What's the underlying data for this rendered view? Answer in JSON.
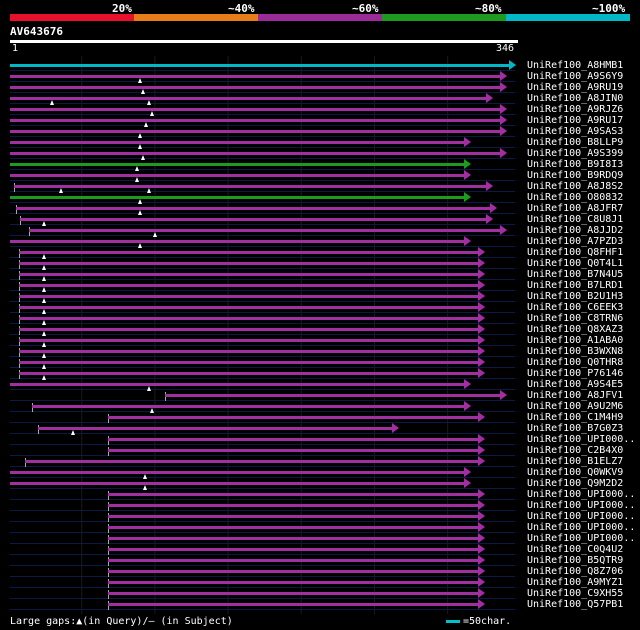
{
  "legend": {
    "labels": [
      "20%",
      "~40%",
      "~60%",
      "~80%",
      "~100%"
    ],
    "colors": [
      "#e8102c",
      "#e87c18",
      "#9a2c9a",
      "#1e9a1e",
      "#00b8c8"
    ]
  },
  "query": {
    "name": "AV643676",
    "start": "1",
    "end": "346"
  },
  "hits": [
    {
      "name": "UniRef100_A8HMB1",
      "color": "#00b8c8",
      "s": 1,
      "e": 346,
      "gaps": []
    },
    {
      "name": "UniRef100_A9S6Y9",
      "color": "#a030a0",
      "s": 1,
      "e": 340,
      "gaps": [
        90
      ]
    },
    {
      "name": "UniRef100_A9RU19",
      "color": "#a030a0",
      "s": 1,
      "e": 340,
      "gaps": [
        92
      ]
    },
    {
      "name": "UniRef100_A8JIN0",
      "color": "#a030a0",
      "s": 1,
      "e": 330,
      "gaps": [
        30,
        96
      ]
    },
    {
      "name": "UniRef100_A9RJZ6",
      "color": "#a030a0",
      "s": 1,
      "e": 340,
      "gaps": [
        98
      ]
    },
    {
      "name": "UniRef100_A9RU17",
      "color": "#a030a0",
      "s": 1,
      "e": 340,
      "gaps": [
        94
      ]
    },
    {
      "name": "UniRef100_A9SAS3",
      "color": "#a030a0",
      "s": 1,
      "e": 340,
      "gaps": [
        90
      ]
    },
    {
      "name": "UniRef100_B8LLP9",
      "color": "#a030a0",
      "s": 1,
      "e": 315,
      "gaps": [
        90
      ]
    },
    {
      "name": "UniRef100_A9S399",
      "color": "#a030a0",
      "s": 1,
      "e": 340,
      "gaps": [
        92
      ]
    },
    {
      "name": "UniRef100_B9I8I3",
      "color": "#1e9a1e",
      "s": 1,
      "e": 315,
      "gaps": [
        88
      ]
    },
    {
      "name": "UniRef100_B9RDQ9",
      "color": "#a030a0",
      "s": 1,
      "e": 315,
      "gaps": [
        88
      ]
    },
    {
      "name": "UniRef100_A8J8S2",
      "color": "#a030a0",
      "s": 4,
      "e": 330,
      "gaps": [
        36,
        96
      ]
    },
    {
      "name": "UniRef100_O80832",
      "color": "#1e9a1e",
      "s": 1,
      "e": 315,
      "gaps": [
        90
      ]
    },
    {
      "name": "UniRef100_A8JFR7",
      "color": "#a030a0",
      "s": 5,
      "e": 333,
      "gaps": [
        90
      ]
    },
    {
      "name": "UniRef100_C8U8J1",
      "color": "#a030a0",
      "s": 8,
      "e": 330,
      "gaps": [
        24
      ]
    },
    {
      "name": "UniRef100_A8JJD2",
      "color": "#a030a0",
      "s": 14,
      "e": 340,
      "gaps": [
        100
      ]
    },
    {
      "name": "UniRef100_A7PZD3",
      "color": "#a030a0",
      "s": 1,
      "e": 315,
      "gaps": [
        90
      ]
    },
    {
      "name": "UniRef100_Q8FHF1",
      "color": "#a030a0",
      "s": 7,
      "e": 325,
      "gaps": [
        24
      ]
    },
    {
      "name": "UniRef100_Q0T4L1",
      "color": "#a030a0",
      "s": 7,
      "e": 325,
      "gaps": [
        24
      ]
    },
    {
      "name": "UniRef100_B7N4U5",
      "color": "#a030a0",
      "s": 7,
      "e": 325,
      "gaps": [
        24
      ]
    },
    {
      "name": "UniRef100_B7LRD1",
      "color": "#a030a0",
      "s": 7,
      "e": 325,
      "gaps": [
        24
      ]
    },
    {
      "name": "UniRef100_B2U1H3",
      "color": "#a030a0",
      "s": 7,
      "e": 325,
      "gaps": [
        24
      ]
    },
    {
      "name": "UniRef100_C6EEK3",
      "color": "#a030a0",
      "s": 7,
      "e": 325,
      "gaps": [
        24
      ]
    },
    {
      "name": "UniRef100_C8TRN6",
      "color": "#a030a0",
      "s": 7,
      "e": 325,
      "gaps": [
        24
      ]
    },
    {
      "name": "UniRef100_Q8XAZ3",
      "color": "#a030a0",
      "s": 7,
      "e": 325,
      "gaps": [
        24
      ]
    },
    {
      "name": "UniRef100_A1ABA0",
      "color": "#a030a0",
      "s": 7,
      "e": 325,
      "gaps": [
        24
      ]
    },
    {
      "name": "UniRef100_B3WXN8",
      "color": "#a030a0",
      "s": 7,
      "e": 325,
      "gaps": [
        24
      ]
    },
    {
      "name": "UniRef100_Q0THR8",
      "color": "#a030a0",
      "s": 7,
      "e": 325,
      "gaps": [
        24
      ]
    },
    {
      "name": "UniRef100_P76146",
      "color": "#a030a0",
      "s": 7,
      "e": 325,
      "gaps": [
        24
      ]
    },
    {
      "name": "UniRef100_A9S4E5",
      "color": "#a030a0",
      "s": 1,
      "e": 315,
      "gaps": [
        96
      ]
    },
    {
      "name": "UniRef100_A8JFV1",
      "color": "#a030a0",
      "s": 107,
      "e": 340,
      "gaps": []
    },
    {
      "name": "UniRef100_A9U2M6",
      "color": "#a030a0",
      "s": 16,
      "e": 315,
      "gaps": [
        98
      ]
    },
    {
      "name": "UniRef100_C1M4H9",
      "color": "#a030a0",
      "s": 68,
      "e": 325,
      "gaps": []
    },
    {
      "name": "UniRef100_B7G0Z3",
      "color": "#a030a0",
      "s": 20,
      "e": 266,
      "gaps": [
        44
      ]
    },
    {
      "name": "UniRef100_UPI000..",
      "color": "#a030a0",
      "s": 68,
      "e": 325,
      "gaps": []
    },
    {
      "name": "UniRef100_C2B4X0",
      "color": "#a030a0",
      "s": 68,
      "e": 325,
      "gaps": []
    },
    {
      "name": "UniRef100_B1ELZ7",
      "color": "#a030a0",
      "s": 11,
      "e": 325,
      "gaps": []
    },
    {
      "name": "UniRef100_Q0WKV9",
      "color": "#a030a0",
      "s": 1,
      "e": 315,
      "gaps": [
        93
      ]
    },
    {
      "name": "UniRef100_Q9M2D2",
      "color": "#a030a0",
      "s": 1,
      "e": 315,
      "gaps": [
        93
      ]
    },
    {
      "name": "UniRef100_UPI000..",
      "color": "#a030a0",
      "s": 68,
      "e": 325,
      "gaps": []
    },
    {
      "name": "UniRef100_UPI000..",
      "color": "#a030a0",
      "s": 68,
      "e": 325,
      "gaps": []
    },
    {
      "name": "UniRef100_UPI000..",
      "color": "#a030a0",
      "s": 68,
      "e": 325,
      "gaps": []
    },
    {
      "name": "UniRef100_UPI000..",
      "color": "#a030a0",
      "s": 68,
      "e": 325,
      "gaps": []
    },
    {
      "name": "UniRef100_UPI000..",
      "color": "#a030a0",
      "s": 68,
      "e": 325,
      "gaps": []
    },
    {
      "name": "UniRef100_C0Q4U2",
      "color": "#a030a0",
      "s": 68,
      "e": 325,
      "gaps": []
    },
    {
      "name": "UniRef100_B5QTR9",
      "color": "#a030a0",
      "s": 68,
      "e": 325,
      "gaps": []
    },
    {
      "name": "UniRef100_Q8Z706",
      "color": "#a030a0",
      "s": 68,
      "e": 325,
      "gaps": []
    },
    {
      "name": "UniRef100_A9MYZ1",
      "color": "#a030a0",
      "s": 68,
      "e": 325,
      "gaps": []
    },
    {
      "name": "UniRef100_C9XH55",
      "color": "#a030a0",
      "s": 68,
      "e": 325,
      "gaps": []
    },
    {
      "name": "UniRef100_Q57PB1",
      "color": "#a030a0",
      "s": 68,
      "e": 325,
      "gaps": []
    }
  ],
  "footer": {
    "large_gaps_text": "Large gaps:▲(in Query)/— (in Subject)",
    "scale_text": "=50char."
  }
}
